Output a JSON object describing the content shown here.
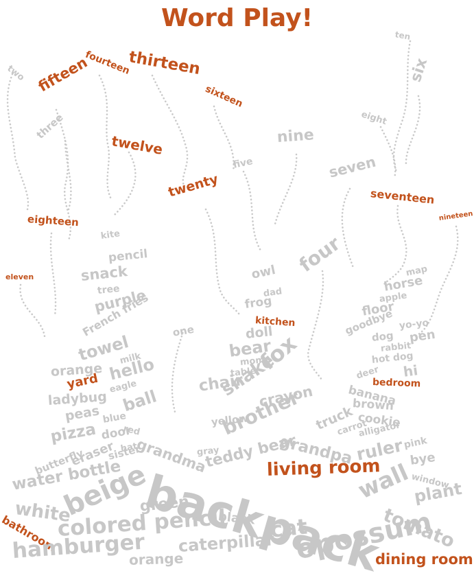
{
  "title": "Word Play!",
  "colors": {
    "accent": "#c2521c",
    "word": "#c7c7c7",
    "background": "#ffffff"
  },
  "words": {
    "ten": "ten",
    "two": "two",
    "fourteen": "fourteen",
    "thirteen": "thirteen",
    "fifteen": "fifteen",
    "sixteen": "sixteen",
    "six": "six",
    "eight": "eight",
    "three": "three",
    "twelve": "twelve",
    "nine": "nine",
    "five": "five",
    "seven": "seven",
    "twenty": "twenty",
    "seventeen": "seventeen",
    "eighteen": "eighteen",
    "nineteen": "nineteen",
    "kite": "kite",
    "pencil": "pencil",
    "four": "four",
    "eleven": "eleven",
    "snack": "snack",
    "owl": "owl",
    "map": "map",
    "tree": "tree",
    "horse": "horse",
    "purple": "purple",
    "dad": "dad",
    "frog": "frog",
    "apple": "apple",
    "floor": "floor",
    "french_fries": "French fries",
    "kitchen": "kitchen",
    "goodbye": "goodbye",
    "yoyo": "yo-yo",
    "one": "one",
    "doll": "doll",
    "dog": "dog",
    "pen": "pen",
    "towel": "towel",
    "rabbit": "rabbit",
    "bear": "bear",
    "milk": "milk",
    "mom": "mom",
    "hot_dog": "hot dog",
    "fox": "fox",
    "orange_1": "orange",
    "table": "table",
    "hi": "hi",
    "hello": "hello",
    "deer": "deer",
    "bedroom": "bedroom",
    "yard": "yard",
    "eagle": "eagle",
    "chair": "chair",
    "snake": "snake",
    "banana": "banana",
    "ladybug": "ladybug",
    "crayon": "crayon",
    "brown": "brown",
    "ball": "ball",
    "cookie": "cookie",
    "peas": "peas",
    "yellow": "yellow",
    "truck": "truck",
    "blue": "blue",
    "brother": "brother",
    "carrot": "carrot",
    "red": "red",
    "alligator": "alligator",
    "pizza": "pizza",
    "door": "door",
    "grandma": "grandma",
    "grandpa": "grandpa",
    "pink": "pink",
    "hat": "hat",
    "ruler": "ruler",
    "butterfly": "butterfly",
    "eraser": "eraser",
    "gray": "gray",
    "sister": "sister",
    "teddy_bear": "teddy bear",
    "bye": "bye",
    "water_bottle": "water bottle",
    "backpack": "backpack",
    "living_room": "living room",
    "window": "window",
    "beige": "beige",
    "wall": "wall",
    "plant": "plant",
    "white": "white",
    "green": "green",
    "black": "black",
    "tomato": "tomato",
    "colored_pencil": "colored pencil",
    "cat": "cat",
    "bathroom": "bathroom",
    "opossum": "opossum",
    "hamburger": "hamburger",
    "caterpillar": "caterpillar",
    "orange_2": "orange",
    "dining_room": "dining room"
  }
}
